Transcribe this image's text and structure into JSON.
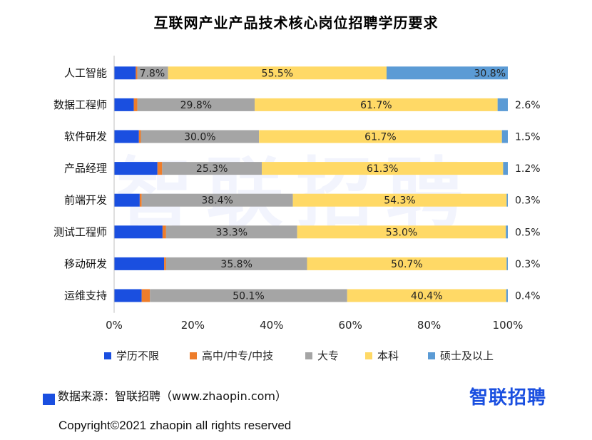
{
  "chart_data": {
    "type": "bar",
    "orientation": "horizontal",
    "stacked": true,
    "title": "互联网产业产品技术核心岗位招聘学历要求",
    "categories": [
      "人工智能",
      "数据工程师",
      "软件研发",
      "产品经理",
      "前端开发",
      "测试工程师",
      "移动研发",
      "运维支持"
    ],
    "series": [
      {
        "name": "学历不限",
        "color": "#1a4fe0",
        "values": [
          5.5,
          5.0,
          6.3,
          11.0,
          6.5,
          12.3,
          12.7,
          7.0
        ]
      },
      {
        "name": "高中/中专/中技",
        "color": "#ee7d2b",
        "values": [
          0.4,
          0.9,
          0.5,
          1.2,
          0.5,
          0.9,
          0.5,
          2.1
        ]
      },
      {
        "name": "大专",
        "color": "#a5a5a5",
        "values": [
          7.8,
          29.8,
          30.0,
          25.3,
          38.4,
          33.3,
          35.8,
          50.1
        ]
      },
      {
        "name": "本科",
        "color": "#ffd966",
        "values": [
          55.5,
          61.7,
          61.7,
          61.3,
          54.3,
          53.0,
          50.7,
          40.4
        ]
      },
      {
        "name": "硕士及以上",
        "color": "#5b9bd5",
        "values": [
          30.8,
          2.6,
          1.5,
          1.2,
          0.3,
          0.5,
          0.3,
          0.4
        ]
      }
    ],
    "data_labels": [
      {
        "series": 2,
        "texts": [
          "7.8%",
          "29.8%",
          "30.0%",
          "25.3%",
          "38.4%",
          "33.3%",
          "35.8%",
          "50.1%"
        ]
      },
      {
        "series": 3,
        "texts": [
          "55.5%",
          "61.7%",
          "61.7%",
          "61.3%",
          "54.3%",
          "53.0%",
          "50.7%",
          "40.4%"
        ]
      },
      {
        "series": 4,
        "texts": [
          "30.8%",
          "2.6%",
          "1.5%",
          "1.2%",
          "0.3%",
          "0.5%",
          "0.3%",
          "0.4%"
        ]
      }
    ],
    "x_ticks": [
      "0%",
      "20%",
      "40%",
      "60%",
      "80%",
      "100%"
    ],
    "xlim": [
      0,
      100
    ],
    "grid": false,
    "legend_position": "bottom"
  },
  "watermark": "智联招聘",
  "source": "数据来源：智联招聘（www.zhaopin.com）",
  "logo": "智联招聘",
  "copyright": "Copyright©2021 zhaopin all rights reserved"
}
